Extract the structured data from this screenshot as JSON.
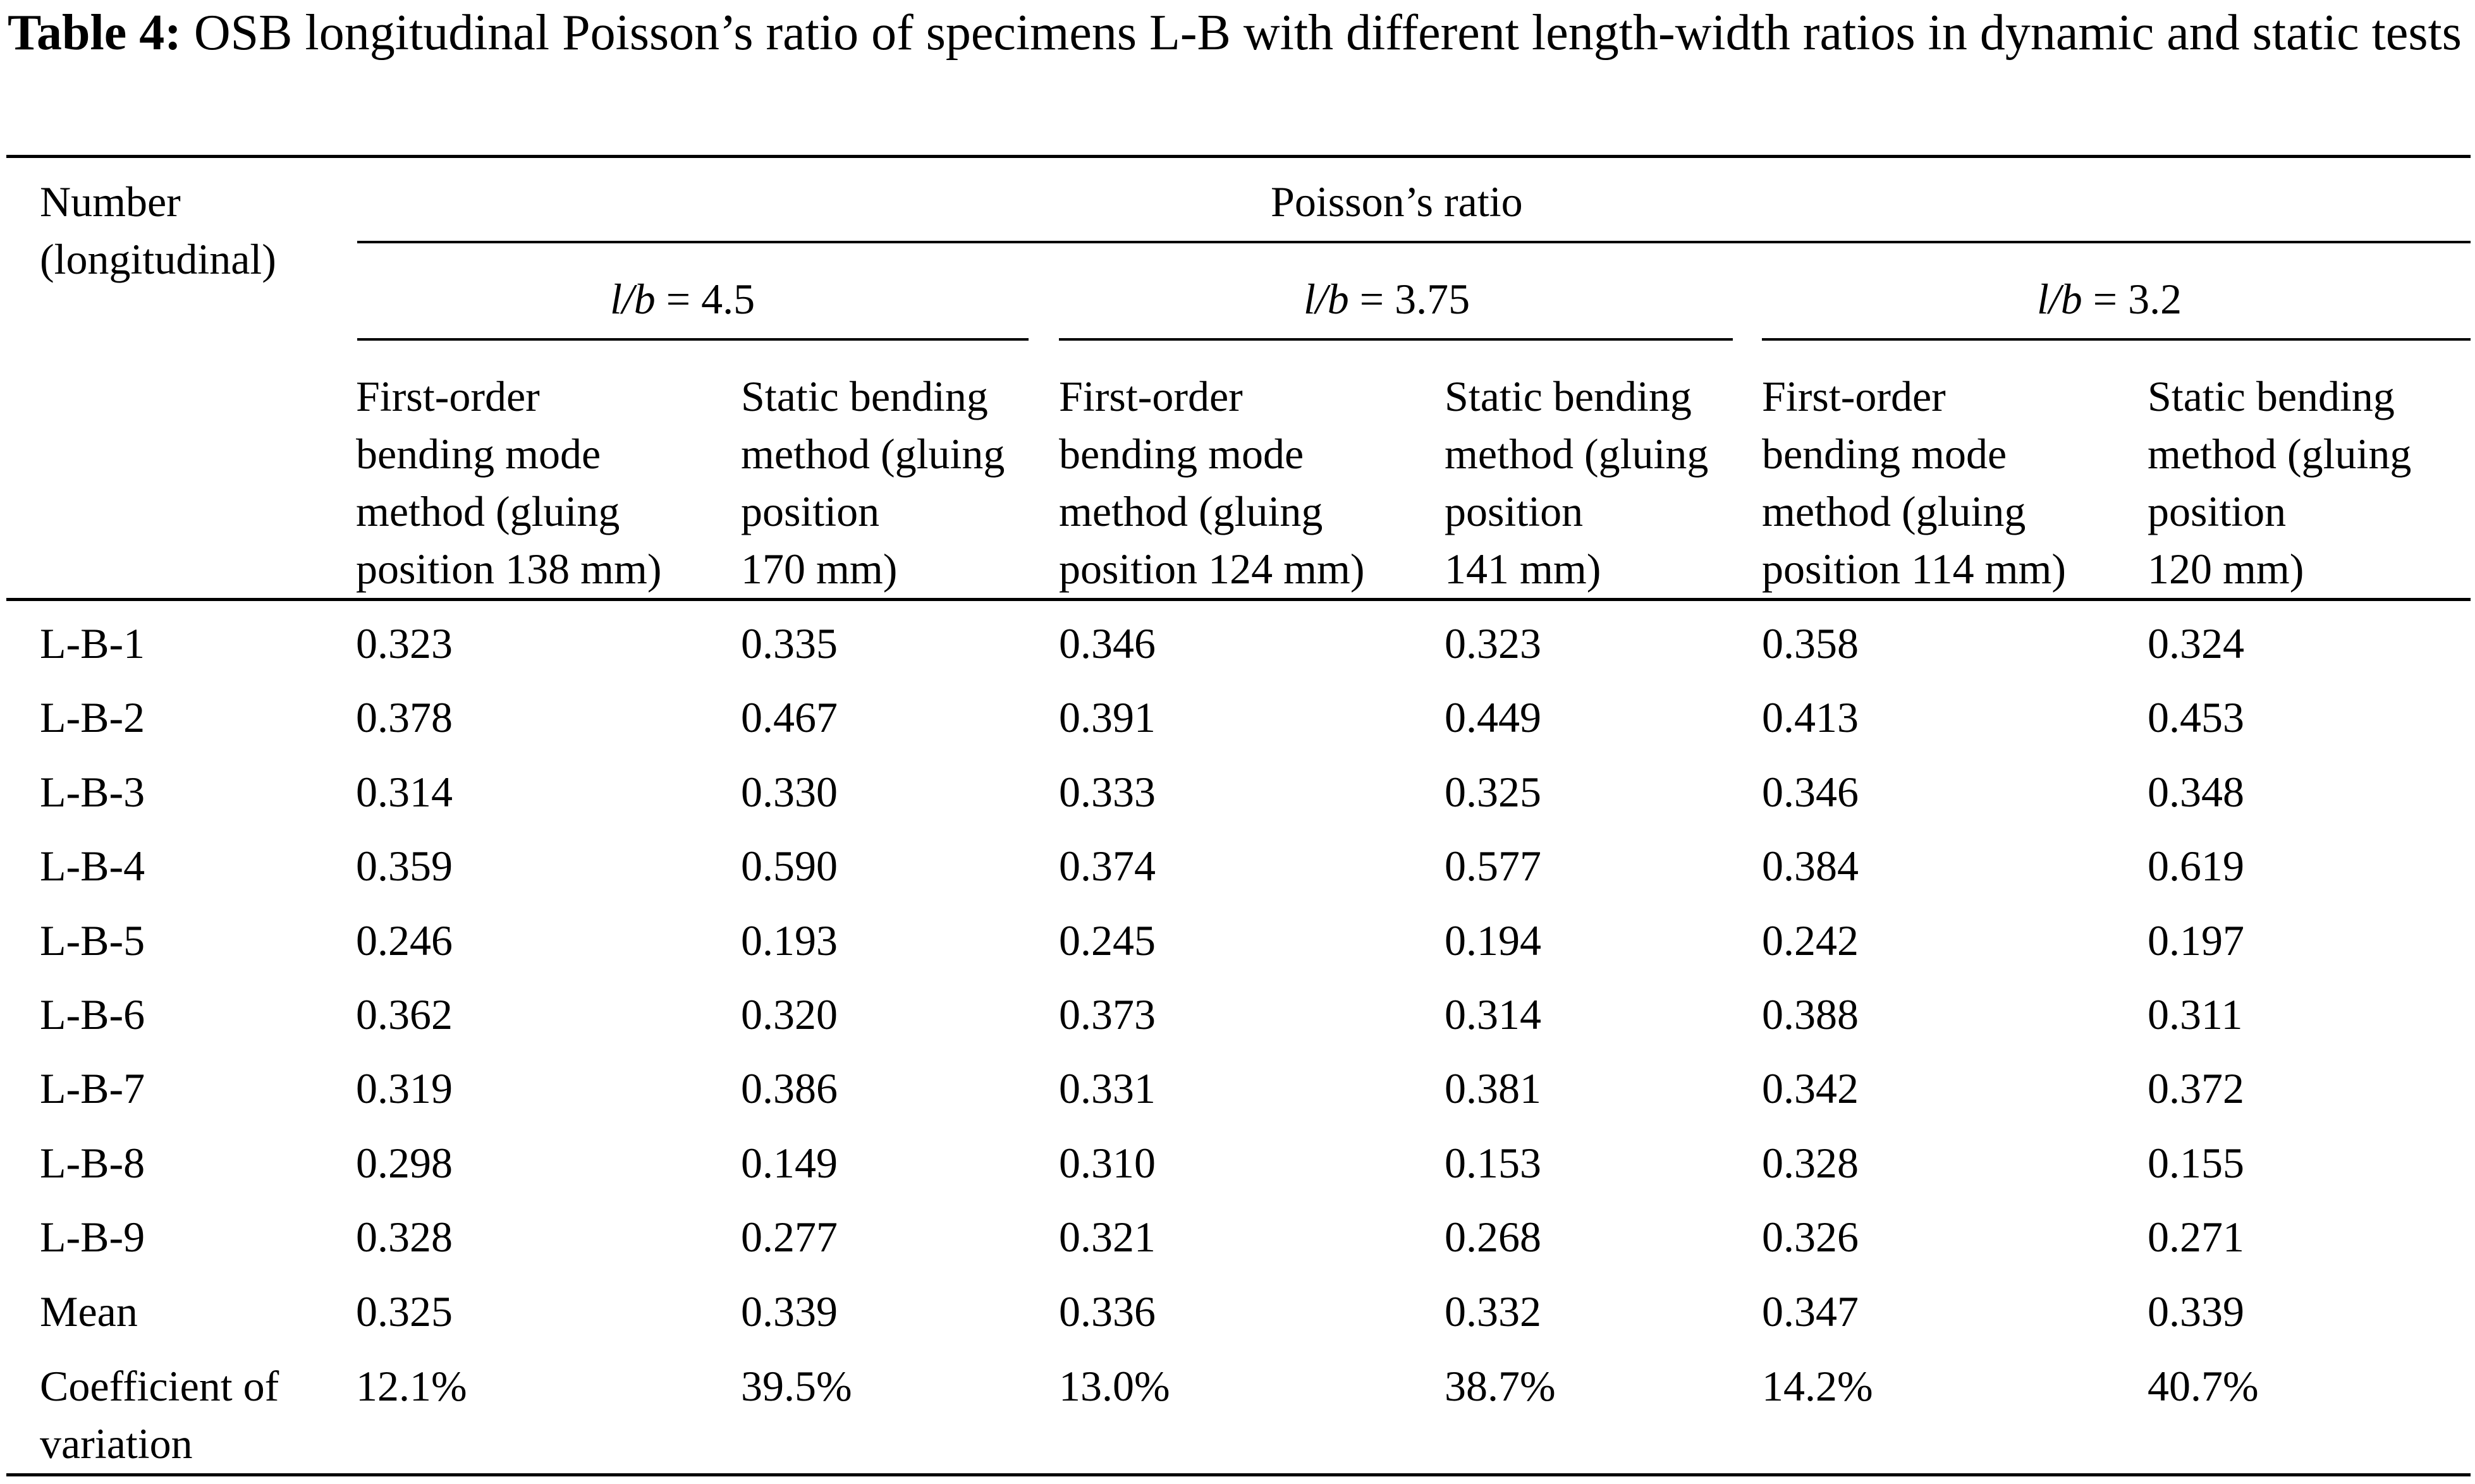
{
  "caption": {
    "label": "Table 4:",
    "text": "OSB longitudinal Poisson’s ratio of specimens L-B with different length-width ratios in dynamic and static tests"
  },
  "header": {
    "row_col": [
      "Number",
      "(longitudinal)"
    ],
    "group": "Poisson’s ratio",
    "ratios": [
      {
        "var": "l/b",
        "value": " = 4.5"
      },
      {
        "var": "l/b",
        "value": " = 3.75"
      },
      {
        "var": "l/b",
        "value": " = 3.2"
      }
    ],
    "methods": [
      [
        "First-order",
        "bending mode",
        "method (gluing",
        "position 138 mm)"
      ],
      [
        "Static bending",
        "method (gluing",
        "position",
        "170 mm)"
      ],
      [
        "First-order",
        "bending mode",
        "method (gluing",
        "position 124 mm)"
      ],
      [
        "Static bending",
        "method (gluing",
        "position",
        "141 mm)"
      ],
      [
        "First-order",
        "bending mode",
        "method (gluing",
        "position 114 mm)"
      ],
      [
        "Static bending",
        "method (gluing",
        "position",
        "120 mm)"
      ]
    ]
  },
  "rows": [
    {
      "label": "L-B-1",
      "values": [
        "0.323",
        "0.335",
        "0.346",
        "0.323",
        "0.358",
        "0.324"
      ]
    },
    {
      "label": "L-B-2",
      "values": [
        "0.378",
        "0.467",
        "0.391",
        "0.449",
        "0.413",
        "0.453"
      ]
    },
    {
      "label": "L-B-3",
      "values": [
        "0.314",
        "0.330",
        "0.333",
        "0.325",
        "0.346",
        "0.348"
      ]
    },
    {
      "label": "L-B-4",
      "values": [
        "0.359",
        "0.590",
        "0.374",
        "0.577",
        "0.384",
        "0.619"
      ]
    },
    {
      "label": "L-B-5",
      "values": [
        "0.246",
        "0.193",
        "0.245",
        "0.194",
        "0.242",
        "0.197"
      ]
    },
    {
      "label": "L-B-6",
      "values": [
        "0.362",
        "0.320",
        "0.373",
        "0.314",
        "0.388",
        "0.311"
      ]
    },
    {
      "label": "L-B-7",
      "values": [
        "0.319",
        "0.386",
        "0.331",
        "0.381",
        "0.342",
        "0.372"
      ]
    },
    {
      "label": "L-B-8",
      "values": [
        "0.298",
        "0.149",
        "0.310",
        "0.153",
        "0.328",
        "0.155"
      ]
    },
    {
      "label": "L-B-9",
      "values": [
        "0.328",
        "0.277",
        "0.321",
        "0.268",
        "0.326",
        "0.271"
      ]
    },
    {
      "label": "Mean",
      "values": [
        "0.325",
        "0.339",
        "0.336",
        "0.332",
        "0.347",
        "0.339"
      ]
    }
  ],
  "cv_row": {
    "label": [
      "Coefficient of",
      "variation"
    ],
    "values": [
      "12.1%",
      "39.5%",
      "13.0%",
      "38.7%",
      "14.2%",
      "40.7%"
    ]
  }
}
